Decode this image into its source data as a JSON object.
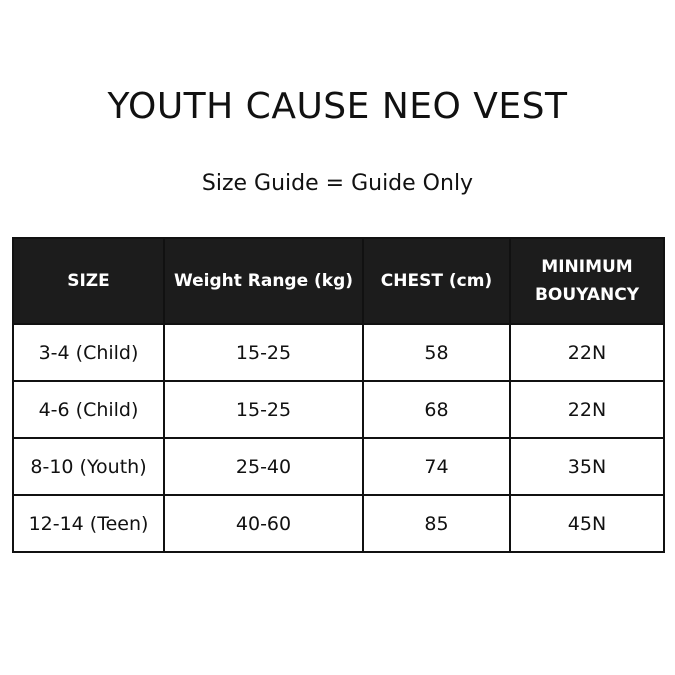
{
  "header": {
    "title": "YOUTH CAUSE NEO VEST",
    "subtitle": "Size Guide = Guide Only"
  },
  "table": {
    "columns": [
      "SIZE",
      "Weight Range (kg)",
      "CHEST (cm)",
      "MINIMUM BOUYANCY"
    ],
    "rows": [
      [
        "3-4 (Child)",
        "15-25",
        "58",
        "22N"
      ],
      [
        "4-6 (Child)",
        "15-25",
        "68",
        "22N"
      ],
      [
        "8-10 (Youth)",
        "25-40",
        "74",
        "35N"
      ],
      [
        "12-14 (Teen)",
        "40-60",
        "85",
        "45N"
      ]
    ]
  }
}
